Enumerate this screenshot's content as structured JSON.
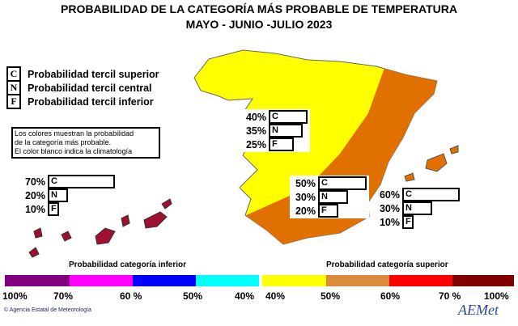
{
  "title": "PROBABILIDAD DE LA CATEGORÍA MÁS PROBABLE DE  TEMPERATURA",
  "subtitle": "MAYO - JUNIO -JULIO 2023",
  "legend": [
    {
      "letter": "C",
      "label": "Probabilidad  tercil superior"
    },
    {
      "letter": "N",
      "label": "Probabilidad  tercil central"
    },
    {
      "letter": "F",
      "label": "Probabilidad  tercil inferior"
    }
  ],
  "note": [
    "Los colores muestran la probabilidad",
    "de la categoría más probable.",
    "El color blanco indica la climatología"
  ],
  "regions": [
    {
      "name": "canarias",
      "values": [
        {
          "l": "C",
          "p": "70%",
          "v": 70
        },
        {
          "l": "N",
          "p": "20%",
          "v": 20
        },
        {
          "l": "F",
          "p": "10%",
          "v": 10
        }
      ]
    },
    {
      "name": "peninsula-oeste",
      "values": [
        {
          "l": "C",
          "p": "40%",
          "v": 40
        },
        {
          "l": "N",
          "p": "35%",
          "v": 35
        },
        {
          "l": "F",
          "p": "25%",
          "v": 25
        }
      ]
    },
    {
      "name": "peninsula-este",
      "values": [
        {
          "l": "C",
          "p": "50%",
          "v": 50
        },
        {
          "l": "N",
          "p": "30%",
          "v": 30
        },
        {
          "l": "F",
          "p": "20%",
          "v": 20
        }
      ]
    },
    {
      "name": "baleares",
      "values": [
        {
          "l": "C",
          "p": "60%",
          "v": 60
        },
        {
          "l": "N",
          "p": "30%",
          "v": 30
        },
        {
          "l": "F",
          "p": "10%",
          "v": 10
        }
      ]
    }
  ],
  "scale": {
    "inferior_title": "Probabilidad categoría inferior",
    "superior_title": "Probabilidad categoría superior",
    "inferior_colors": [
      "#800080",
      "#ff00ff",
      "#0000ff",
      "#00ffff"
    ],
    "superior_colors": [
      "#ffff00",
      "#d98c3a",
      "#ff0000",
      "#800000"
    ],
    "inferior_labels": [
      "100%",
      "70%",
      "60 %",
      "50%",
      "40%"
    ],
    "superior_labels": [
      "40%",
      "50%",
      "60%",
      "70 %",
      "100%"
    ]
  },
  "colors": {
    "yellow": "#ffff00",
    "orange": "#e07000",
    "darkred": "#a01030"
  },
  "footer": "Agencia Estatal de Meteorología",
  "logo": "AEMet"
}
